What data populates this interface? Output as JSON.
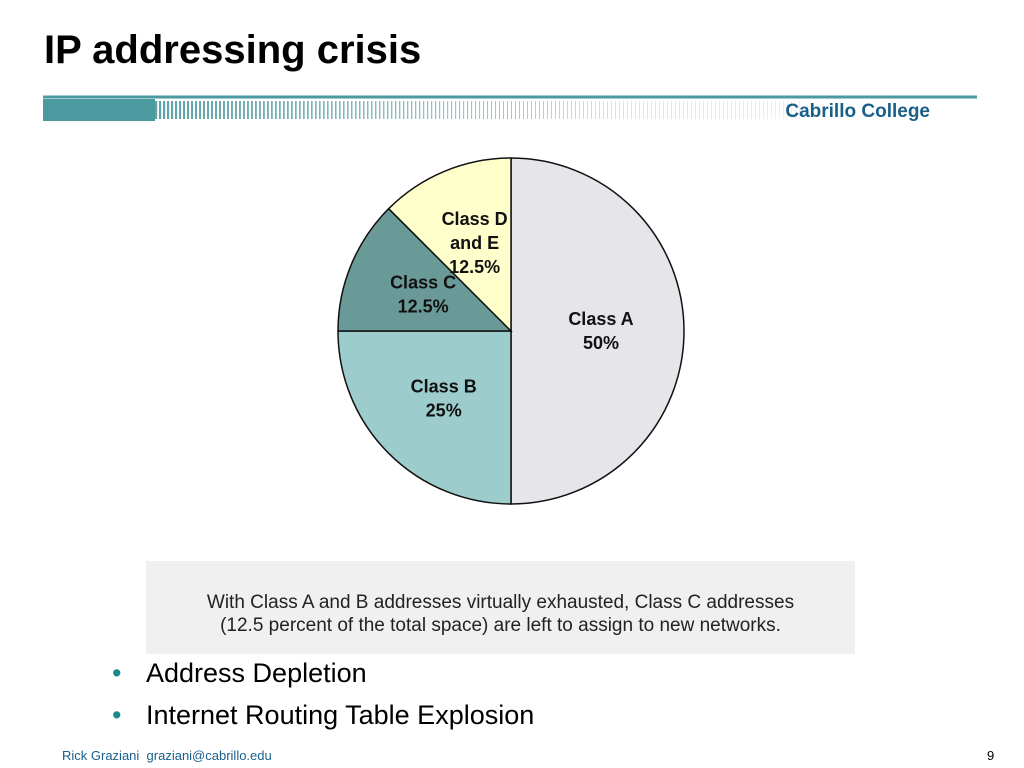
{
  "slide": {
    "title": "IP addressing crisis",
    "brand": "Cabrillo College",
    "caption_lines": [
      "With Class A and B addresses virtually exhausted, Class C addresses",
      "(12.5 percent of the total space) are left to assign to new networks."
    ],
    "bullets": [
      "Address Depletion",
      "Internet Routing Table Explosion"
    ],
    "footer": {
      "author": "Rick Graziani",
      "email": "graziani@cabrillo.edu",
      "page": "9"
    },
    "colors": {
      "accent": "#1a8a8a",
      "brand": "#1a5f8a"
    }
  },
  "chart_data": {
    "type": "pie",
    "title": "",
    "slices": [
      {
        "label_lines": [
          "Class A",
          "50%"
        ],
        "value": 50,
        "color": "#e6e6ea"
      },
      {
        "label_lines": [
          "Class B",
          "25%"
        ],
        "value": 25,
        "color": "#9ccccc"
      },
      {
        "label_lines": [
          "Class C",
          "12.5%"
        ],
        "value": 12.5,
        "color": "#6a9a98"
      },
      {
        "label_lines": [
          "Class D",
          "and E",
          "12.5%"
        ],
        "value": 12.5,
        "color": "#ffffcc"
      }
    ],
    "start": "top",
    "direction": "clockwise",
    "legend": "none"
  }
}
